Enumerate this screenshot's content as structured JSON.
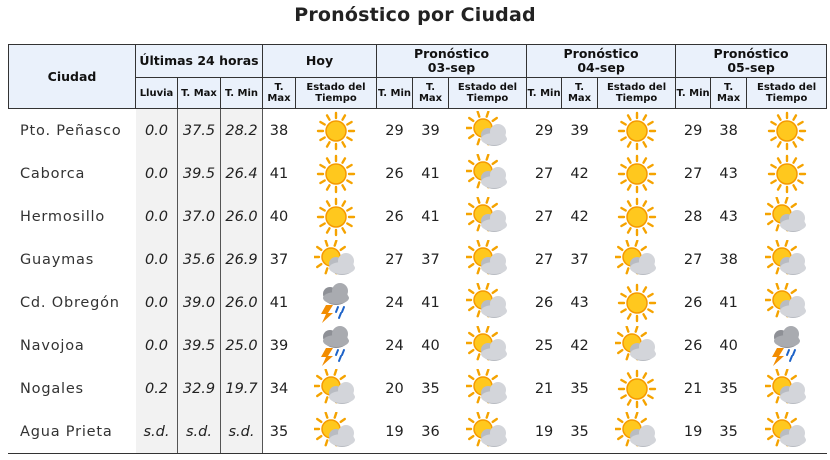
{
  "title": "Pronóstico por Ciudad",
  "headers": {
    "ciudad": "Ciudad",
    "ultimas": "Últimas 24 horas",
    "hoy": "Hoy",
    "pronostico": "Pronóstico",
    "dates": [
      "03-sep",
      "04-sep",
      "05-sep"
    ],
    "lluvia": "Lluvia",
    "tmax": "T. Max",
    "tmin": "T. Min",
    "estado": "Estado del Tiempo"
  },
  "rows": [
    {
      "city": "Pto. Peñasco",
      "lluvia": "0.0",
      "tmax24": "37.5",
      "tmin24": "28.2",
      "hoy": {
        "tmax": "38",
        "icon": "sun-icon"
      },
      "f": [
        {
          "tmin": "29",
          "tmax": "39",
          "icon": "partly-cloudy-icon"
        },
        {
          "tmin": "29",
          "tmax": "39",
          "icon": "sun-icon"
        },
        {
          "tmin": "29",
          "tmax": "38",
          "icon": "sun-icon"
        }
      ]
    },
    {
      "city": "Caborca",
      "lluvia": "0.0",
      "tmax24": "39.5",
      "tmin24": "26.4",
      "hoy": {
        "tmax": "41",
        "icon": "sun-icon"
      },
      "f": [
        {
          "tmin": "26",
          "tmax": "41",
          "icon": "partly-cloudy-icon"
        },
        {
          "tmin": "27",
          "tmax": "42",
          "icon": "sun-icon"
        },
        {
          "tmin": "27",
          "tmax": "43",
          "icon": "sun-icon"
        }
      ]
    },
    {
      "city": "Hermosillo",
      "lluvia": "0.0",
      "tmax24": "37.0",
      "tmin24": "26.0",
      "hoy": {
        "tmax": "40",
        "icon": "sun-icon"
      },
      "f": [
        {
          "tmin": "26",
          "tmax": "41",
          "icon": "partly-cloudy-icon"
        },
        {
          "tmin": "27",
          "tmax": "42",
          "icon": "sun-icon"
        },
        {
          "tmin": "28",
          "tmax": "43",
          "icon": "partly-cloudy-icon"
        }
      ]
    },
    {
      "city": "Guaymas",
      "lluvia": "0.0",
      "tmax24": "35.6",
      "tmin24": "26.9",
      "hoy": {
        "tmax": "37",
        "icon": "partly-cloudy-icon"
      },
      "f": [
        {
          "tmin": "27",
          "tmax": "37",
          "icon": "partly-cloudy-icon"
        },
        {
          "tmin": "27",
          "tmax": "37",
          "icon": "partly-cloudy-icon"
        },
        {
          "tmin": "27",
          "tmax": "38",
          "icon": "partly-cloudy-icon"
        }
      ]
    },
    {
      "city": "Cd. Obregón",
      "lluvia": "0.0",
      "tmax24": "39.0",
      "tmin24": "26.0",
      "hoy": {
        "tmax": "41",
        "icon": "storm-icon"
      },
      "f": [
        {
          "tmin": "24",
          "tmax": "41",
          "icon": "partly-cloudy-icon"
        },
        {
          "tmin": "26",
          "tmax": "43",
          "icon": "sun-icon"
        },
        {
          "tmin": "26",
          "tmax": "41",
          "icon": "partly-cloudy-icon"
        }
      ]
    },
    {
      "city": "Navojoa",
      "lluvia": "0.0",
      "tmax24": "39.5",
      "tmin24": "25.0",
      "hoy": {
        "tmax": "39",
        "icon": "storm-icon"
      },
      "f": [
        {
          "tmin": "24",
          "tmax": "40",
          "icon": "partly-cloudy-icon"
        },
        {
          "tmin": "25",
          "tmax": "42",
          "icon": "partly-cloudy-icon"
        },
        {
          "tmin": "26",
          "tmax": "40",
          "icon": "storm-icon"
        }
      ]
    },
    {
      "city": "Nogales",
      "lluvia": "0.2",
      "tmax24": "32.9",
      "tmin24": "19.7",
      "hoy": {
        "tmax": "34",
        "icon": "partly-cloudy-icon"
      },
      "f": [
        {
          "tmin": "20",
          "tmax": "35",
          "icon": "partly-cloudy-icon"
        },
        {
          "tmin": "21",
          "tmax": "35",
          "icon": "sun-icon"
        },
        {
          "tmin": "21",
          "tmax": "35",
          "icon": "partly-cloudy-icon"
        }
      ]
    },
    {
      "city": "Agua Prieta",
      "lluvia": "s.d.",
      "tmax24": "s.d.",
      "tmin24": "s.d.",
      "hoy": {
        "tmax": "35",
        "icon": "partly-cloudy-icon"
      },
      "f": [
        {
          "tmin": "19",
          "tmax": "36",
          "icon": "partly-cloudy-icon"
        },
        {
          "tmin": "19",
          "tmax": "35",
          "icon": "partly-cloudy-icon"
        },
        {
          "tmin": "19",
          "tmax": "35",
          "icon": "partly-cloudy-icon"
        }
      ]
    }
  ]
}
